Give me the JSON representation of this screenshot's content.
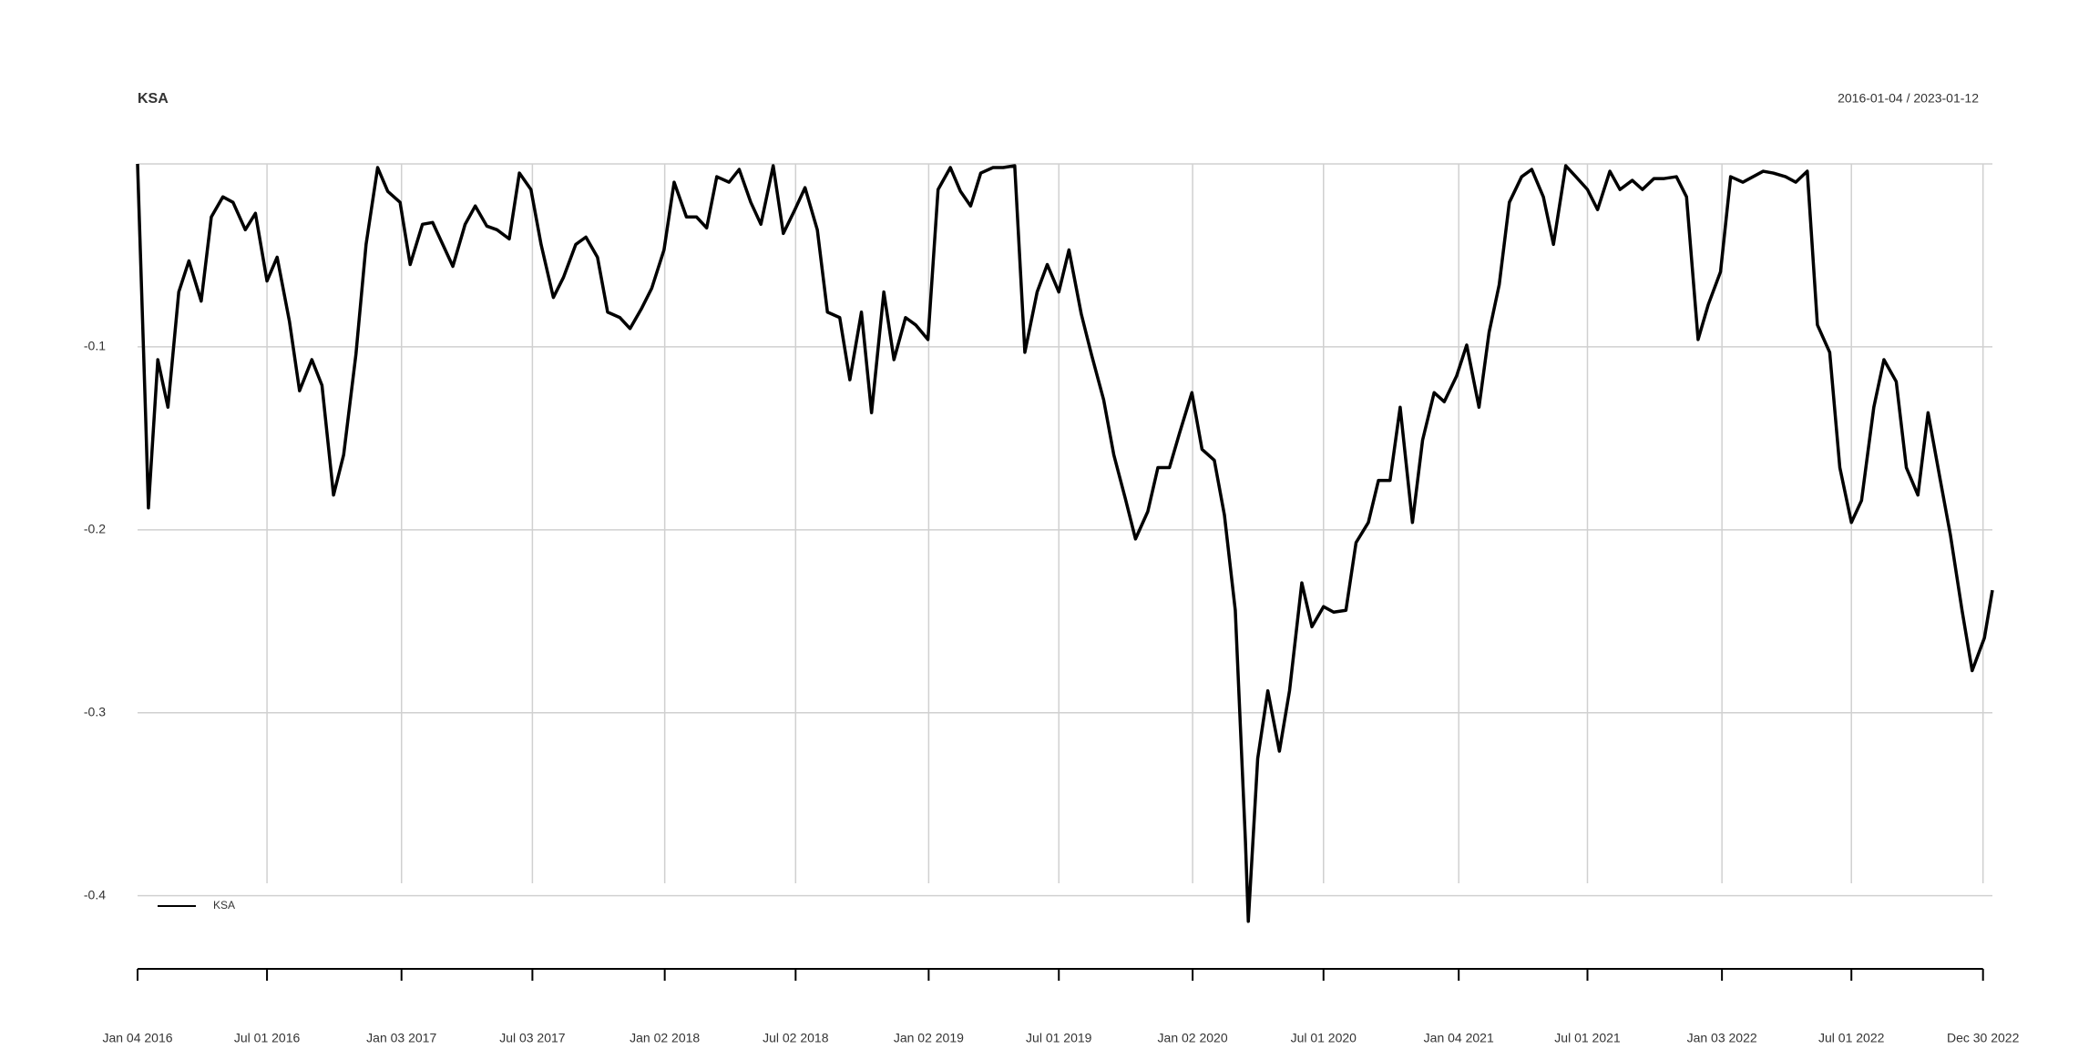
{
  "chart_data": {
    "type": "line",
    "title": "KSA",
    "subtitle": "2016-01-04 / 2023-01-12",
    "x": [
      "2016-01-04",
      "2016-01-15",
      "2016-01-19",
      "2016-02-01",
      "2016-02-15",
      "2016-03-01",
      "2016-03-15",
      "2016-04-01",
      "2016-04-15",
      "2016-05-01",
      "2016-05-15",
      "2016-06-01",
      "2016-06-15",
      "2016-07-01",
      "2016-07-15",
      "2016-08-01",
      "2016-08-15",
      "2016-09-01",
      "2016-09-15",
      "2016-10-01",
      "2016-10-15",
      "2016-11-01",
      "2016-11-15",
      "2016-12-01",
      "2016-12-15",
      "2017-01-01",
      "2017-01-15",
      "2017-02-01",
      "2017-02-15",
      "2017-03-01",
      "2017-03-15",
      "2017-04-01",
      "2017-04-15",
      "2017-05-01",
      "2017-05-15",
      "2017-06-01",
      "2017-06-15",
      "2017-07-01",
      "2017-07-15",
      "2017-08-01",
      "2017-08-15",
      "2017-09-01",
      "2017-09-15",
      "2017-10-01",
      "2017-10-15",
      "2017-11-01",
      "2017-11-15",
      "2017-12-01",
      "2017-12-15",
      "2018-01-01",
      "2018-01-15",
      "2018-02-01",
      "2018-02-15",
      "2018-03-01",
      "2018-03-15",
      "2018-04-01",
      "2018-04-15",
      "2018-05-01",
      "2018-05-15",
      "2018-06-01",
      "2018-06-15",
      "2018-07-01",
      "2018-07-15",
      "2018-08-01",
      "2018-08-15",
      "2018-09-01",
      "2018-09-15",
      "2018-10-01",
      "2018-10-15",
      "2018-11-01",
      "2018-11-15",
      "2018-12-01",
      "2018-12-15",
      "2019-01-01",
      "2019-01-15",
      "2019-02-01",
      "2019-02-15",
      "2019-03-01",
      "2019-03-15",
      "2019-04-01",
      "2019-04-15",
      "2019-05-01",
      "2019-05-15",
      "2019-06-01",
      "2019-06-15",
      "2019-07-01",
      "2019-07-15",
      "2019-08-01",
      "2019-08-15",
      "2019-09-01",
      "2019-09-15",
      "2019-10-01",
      "2019-10-15",
      "2019-11-01",
      "2019-11-15",
      "2019-12-01",
      "2019-12-15",
      "2020-01-01",
      "2020-01-15",
      "2020-02-01",
      "2020-02-15",
      "2020-03-01",
      "2020-03-15",
      "2020-03-19",
      "2020-04-01",
      "2020-04-15",
      "2020-05-01",
      "2020-05-15",
      "2020-06-01",
      "2020-06-15",
      "2020-07-01",
      "2020-07-15",
      "2020-08-01",
      "2020-08-15",
      "2020-09-01",
      "2020-09-15",
      "2020-10-01",
      "2020-10-15",
      "2020-11-01",
      "2020-11-15",
      "2020-12-01",
      "2020-12-15",
      "2021-01-01",
      "2021-01-15",
      "2021-02-01",
      "2021-02-15",
      "2021-03-01",
      "2021-03-15",
      "2021-04-01",
      "2021-04-15",
      "2021-05-01",
      "2021-05-15",
      "2021-06-01",
      "2021-06-15",
      "2021-07-01",
      "2021-07-15",
      "2021-08-01",
      "2021-08-15",
      "2021-09-01",
      "2021-09-15",
      "2021-10-01",
      "2021-10-15",
      "2021-11-01",
      "2021-11-15",
      "2021-12-01",
      "2021-12-15",
      "2022-01-01",
      "2022-01-15",
      "2022-02-01",
      "2022-02-15",
      "2022-03-01",
      "2022-03-15",
      "2022-04-01",
      "2022-04-15",
      "2022-05-01",
      "2022-05-15",
      "2022-06-01",
      "2022-06-15",
      "2022-07-01",
      "2022-07-15",
      "2022-08-01",
      "2022-08-15",
      "2022-09-01",
      "2022-09-15",
      "2022-10-01",
      "2022-10-15",
      "2022-11-01",
      "2022-11-15",
      "2022-12-01",
      "2022-12-15",
      "2023-01-01",
      "2023-01-12"
    ],
    "series": [
      {
        "name": "KSA",
        "color": "#000000",
        "values": [
          0,
          -0.136,
          -0.188,
          -0.107,
          -0.133,
          -0.07,
          -0.053,
          -0.075,
          -0.029,
          -0.018,
          -0.021,
          -0.036,
          -0.027,
          -0.064,
          -0.051,
          -0.086,
          -0.124,
          -0.107,
          -0.121,
          -0.181,
          -0.159,
          -0.104,
          -0.044,
          -0.002,
          -0.015,
          -0.021,
          -0.055,
          -0.033,
          -0.032,
          -0.044,
          -0.056,
          -0.033,
          -0.023,
          -0.034,
          -0.036,
          -0.041,
          -0.005,
          -0.014,
          -0.044,
          -0.073,
          -0.062,
          -0.044,
          -0.04,
          -0.051,
          -0.081,
          -0.084,
          -0.09,
          -0.079,
          -0.068,
          -0.047,
          -0.01,
          -0.029,
          -0.029,
          -0.035,
          -0.007,
          -0.01,
          -0.003,
          -0.021,
          -0.033,
          -0.001,
          -0.038,
          -0.025,
          -0.013,
          -0.036,
          -0.081,
          -0.084,
          -0.118,
          -0.081,
          -0.136,
          -0.07,
          -0.107,
          -0.084,
          -0.088,
          -0.096,
          -0.014,
          -0.002,
          -0.015,
          -0.023,
          -0.005,
          -0.002,
          -0.002,
          -0.001,
          -0.103,
          -0.07,
          -0.055,
          -0.07,
          -0.047,
          -0.082,
          -0.104,
          -0.129,
          -0.159,
          -0.183,
          -0.205,
          -0.19,
          -0.166,
          -0.166,
          -0.147,
          -0.125,
          -0.156,
          -0.162,
          -0.192,
          -0.244,
          -0.37,
          -0.414,
          -0.325,
          -0.288,
          -0.321,
          -0.288,
          -0.229,
          -0.253,
          -0.242,
          -0.245,
          -0.244,
          -0.207,
          -0.196,
          -0.173,
          -0.173,
          -0.133,
          -0.196,
          -0.151,
          -0.125,
          -0.13,
          -0.116,
          -0.099,
          -0.133,
          -0.092,
          -0.066,
          -0.021,
          -0.007,
          -0.003,
          -0.018,
          -0.044,
          -0.001,
          -0.007,
          -0.014,
          -0.025,
          -0.004,
          -0.014,
          -0.009,
          -0.014,
          -0.008,
          -0.008,
          -0.007,
          -0.018,
          -0.096,
          -0.077,
          -0.059,
          -0.007,
          -0.01,
          -0.007,
          -0.004,
          -0.005,
          -0.007,
          -0.01,
          -0.004,
          -0.088,
          -0.103,
          -0.166,
          -0.196,
          -0.184,
          -0.133,
          -0.107,
          -0.119,
          -0.166,
          -0.181,
          -0.136,
          -0.173,
          -0.203,
          -0.244,
          -0.277,
          -0.259,
          -0.233
        ]
      }
    ],
    "xlim": [
      "2016-01-04",
      "2023-01-12"
    ],
    "xticks": [
      {
        "value": "2016-01-04",
        "label": "Jan 04 2016"
      },
      {
        "value": "2016-07-01",
        "label": "Jul 01 2016"
      },
      {
        "value": "2017-01-03",
        "label": "Jan 03 2017"
      },
      {
        "value": "2017-07-03",
        "label": "Jul 03 2017"
      },
      {
        "value": "2018-01-02",
        "label": "Jan 02 2018"
      },
      {
        "value": "2018-07-02",
        "label": "Jul 02 2018"
      },
      {
        "value": "2019-01-02",
        "label": "Jan 02 2019"
      },
      {
        "value": "2019-07-01",
        "label": "Jul 01 2019"
      },
      {
        "value": "2020-01-02",
        "label": "Jan 02 2020"
      },
      {
        "value": "2020-07-01",
        "label": "Jul 01 2020"
      },
      {
        "value": "2021-01-04",
        "label": "Jan 04 2021"
      },
      {
        "value": "2021-07-01",
        "label": "Jul 01 2021"
      },
      {
        "value": "2022-01-03",
        "label": "Jan 03 2022"
      },
      {
        "value": "2022-07-01",
        "label": "Jul 01 2022"
      },
      {
        "value": "2022-12-30",
        "label": "Dec 30 2022"
      }
    ],
    "ylim": [
      -0.44,
      0
    ],
    "yticks": [
      -0.4,
      -0.3,
      -0.2,
      -0.1
    ],
    "grid": true,
    "legend": "bottomleft"
  }
}
